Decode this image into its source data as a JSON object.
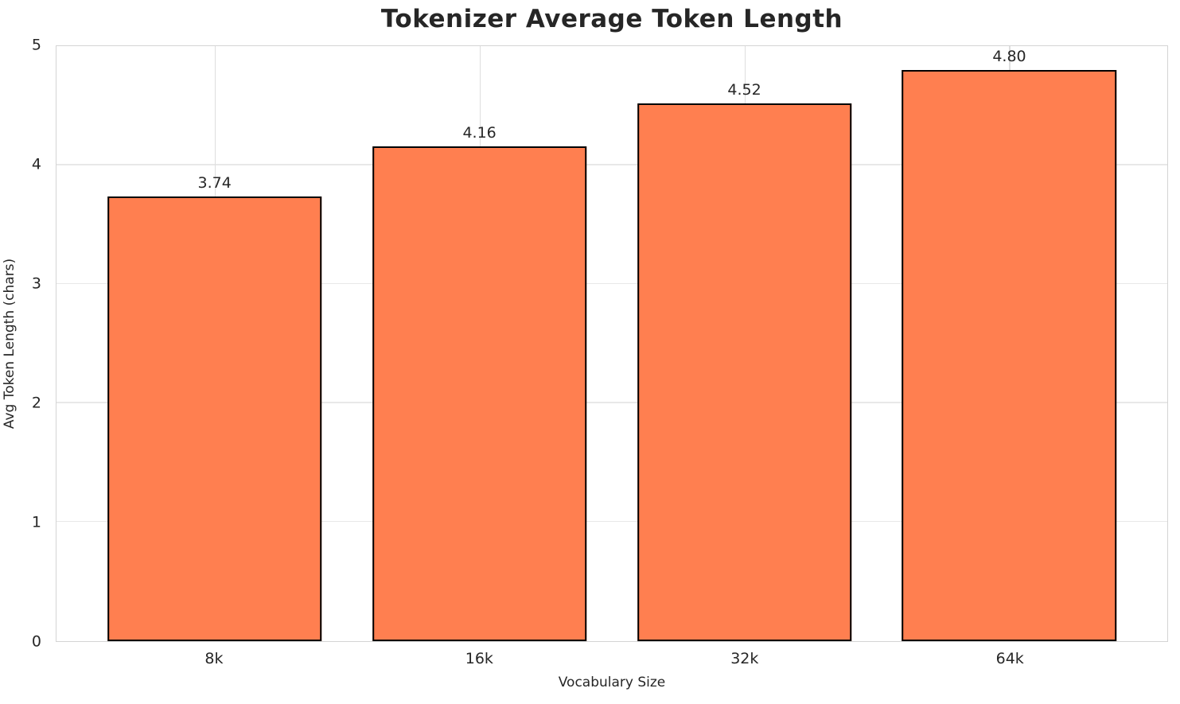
{
  "chart_data": {
    "type": "bar",
    "title": "Tokenizer Average Token Length",
    "xlabel": "Vocabulary Size",
    "ylabel": "Avg Token Length (chars)",
    "categories": [
      "8k",
      "16k",
      "32k",
      "64k"
    ],
    "values": [
      3.74,
      4.16,
      4.52,
      4.8
    ],
    "value_labels": [
      "3.74",
      "4.16",
      "4.52",
      "4.80"
    ],
    "yticks": [
      "0",
      "1",
      "2",
      "3",
      "4",
      "5"
    ],
    "ylim": [
      0,
      5
    ],
    "grid": "on",
    "legend": "none",
    "colors": {
      "bar_fill": "#FF7F50",
      "bar_edge": "#000000",
      "h_grid_line": "#e8e8e8",
      "v_grid_line": "#dedede",
      "spine": "#d4d4d4",
      "tick_text": "#262626",
      "title_text": "#262626",
      "background": "#ffffff"
    }
  }
}
